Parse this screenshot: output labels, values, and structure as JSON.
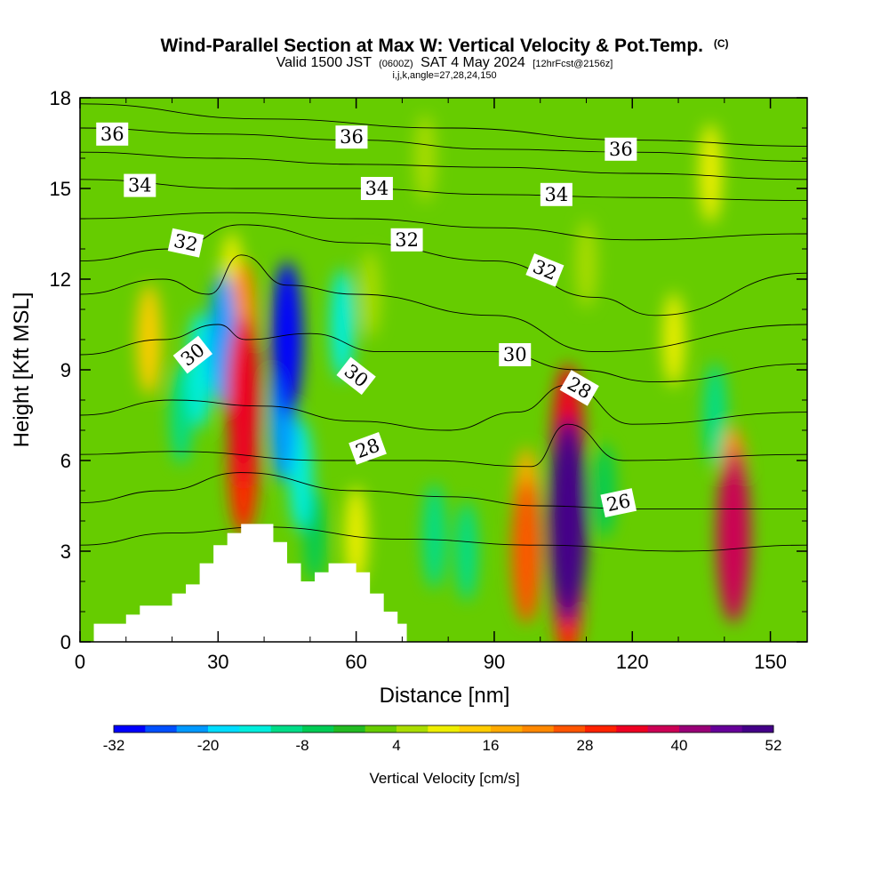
{
  "header": {
    "title": "Wind-Parallel Section at Max W: Vertical Velocity & Pot.Temp.",
    "title_suffix": "(C)",
    "valid_prefix": "Valid 1500 JST",
    "valid_utc": "(0600Z)",
    "valid_date": "SAT 4 May 2024",
    "forecast": "[12hrFcst@2156z]",
    "indices": "i,j,k,angle=27,28,24,150"
  },
  "chart_data": {
    "type": "heatmap",
    "xlabel": "Distance [nm]",
    "ylabel": "Height [Kft MSL]",
    "xlim": [
      0,
      158
    ],
    "ylim": [
      0,
      18
    ],
    "x_ticks": [
      "0",
      "30",
      "60",
      "90",
      "120",
      "150"
    ],
    "y_ticks": [
      "0",
      "3",
      "6",
      "9",
      "12",
      "15",
      "18"
    ],
    "colorbar": {
      "label": "Vertical Velocity [cm/s]",
      "tick_labels": [
        "-32",
        "-20",
        "-8",
        "4",
        "16",
        "28",
        "40",
        "52"
      ],
      "min": -32,
      "max": 52,
      "step": 4,
      "colors": [
        "#0000ff",
        "#0050ff",
        "#0099ff",
        "#00ddff",
        "#00eedd",
        "#00dd88",
        "#00cc55",
        "#22bb22",
        "#66cc00",
        "#aadd00",
        "#eeee00",
        "#ffcc00",
        "#ffaa00",
        "#ff8800",
        "#ff5500",
        "#ff2200",
        "#ee0022",
        "#cc0055",
        "#990077",
        "#660099",
        "#440088"
      ]
    },
    "vertical_velocity_cells": [
      {
        "x": 35.5,
        "y": 8.0,
        "w": 34
      },
      {
        "x": 35.5,
        "y": 6.0,
        "w": 28
      },
      {
        "x": 35.5,
        "y": 10.5,
        "w": 20
      },
      {
        "x": 33.0,
        "y": 12.0,
        "w": 8
      },
      {
        "x": 31.0,
        "y": 10.0,
        "w": -22
      },
      {
        "x": 26.0,
        "y": 9.0,
        "w": -16
      },
      {
        "x": 22.0,
        "y": 7.5,
        "w": -10
      },
      {
        "x": 45.0,
        "y": 10.0,
        "w": -30
      },
      {
        "x": 44.0,
        "y": 7.5,
        "w": -22
      },
      {
        "x": 48.0,
        "y": 5.5,
        "w": -14
      },
      {
        "x": 51.0,
        "y": 3.5,
        "w": -8
      },
      {
        "x": 57.0,
        "y": 10.5,
        "w": -14
      },
      {
        "x": 60.0,
        "y": 3.5,
        "w": 10
      },
      {
        "x": 15.0,
        "y": 10.0,
        "w": 14
      },
      {
        "x": 63.0,
        "y": 11.5,
        "w": 6
      },
      {
        "x": 77.0,
        "y": 3.5,
        "w": -12
      },
      {
        "x": 84.0,
        "y": 3.0,
        "w": -10
      },
      {
        "x": 97.0,
        "y": 3.0,
        "w": 26
      },
      {
        "x": 97.0,
        "y": 4.5,
        "w": 16
      },
      {
        "x": 106.0,
        "y": 4.0,
        "w": 48
      },
      {
        "x": 106.0,
        "y": 6.5,
        "w": 32
      },
      {
        "x": 106.0,
        "y": 2.0,
        "w": 30
      },
      {
        "x": 114.0,
        "y": 5.0,
        "w": -8
      },
      {
        "x": 138.0,
        "y": 7.5,
        "w": -12
      },
      {
        "x": 142.0,
        "y": 3.5,
        "w": 36
      },
      {
        "x": 142.0,
        "y": 5.0,
        "w": 20
      },
      {
        "x": 129.0,
        "y": 10.0,
        "w": 8
      },
      {
        "x": 137.0,
        "y": 15.5,
        "w": 10
      },
      {
        "x": 110.0,
        "y": 12.5,
        "w": 6
      },
      {
        "x": 75.0,
        "y": 16.0,
        "w": 6
      }
    ],
    "terrain": [
      [
        3,
        0.6
      ],
      [
        10,
        0.6
      ],
      [
        10,
        0.9
      ],
      [
        13,
        0.9
      ],
      [
        13,
        1.2
      ],
      [
        20,
        1.2
      ],
      [
        20,
        1.6
      ],
      [
        23,
        1.6
      ],
      [
        23,
        1.9
      ],
      [
        26,
        1.9
      ],
      [
        26,
        2.6
      ],
      [
        29,
        2.6
      ],
      [
        29,
        3.2
      ],
      [
        32,
        3.2
      ],
      [
        32,
        3.6
      ],
      [
        35,
        3.6
      ],
      [
        35,
        3.9
      ],
      [
        42,
        3.9
      ],
      [
        42,
        3.3
      ],
      [
        45,
        3.3
      ],
      [
        45,
        2.6
      ],
      [
        48,
        2.6
      ],
      [
        48,
        2.0
      ],
      [
        51,
        2.0
      ],
      [
        51,
        2.3
      ],
      [
        54,
        2.3
      ],
      [
        54,
        2.6
      ],
      [
        60,
        2.6
      ],
      [
        60,
        2.3
      ],
      [
        63,
        2.3
      ],
      [
        63,
        1.6
      ],
      [
        66,
        1.6
      ],
      [
        66,
        1.0
      ],
      [
        69,
        1.0
      ],
      [
        69,
        0.6
      ],
      [
        71,
        0.6
      ],
      [
        71,
        0.3
      ]
    ],
    "theta_contour_labels": [
      {
        "text": "36",
        "x": 7.0,
        "y": 16.8,
        "angle": 0
      },
      {
        "text": "36",
        "x": 59.0,
        "y": 16.7,
        "angle": 0
      },
      {
        "text": "36",
        "x": 117.5,
        "y": 16.3,
        "angle": 0
      },
      {
        "text": "34",
        "x": 13.0,
        "y": 15.1,
        "angle": 0
      },
      {
        "text": "34",
        "x": 64.5,
        "y": 15.0,
        "angle": 0
      },
      {
        "text": "34",
        "x": 103.5,
        "y": 14.8,
        "angle": 0
      },
      {
        "text": "32",
        "x": 23.0,
        "y": 13.2,
        "angle": 12
      },
      {
        "text": "32",
        "x": 71.0,
        "y": 13.3,
        "angle": 0
      },
      {
        "text": "32",
        "x": 101.0,
        "y": 12.3,
        "angle": 22
      },
      {
        "text": "30",
        "x": 24.5,
        "y": 9.5,
        "angle": -38
      },
      {
        "text": "30",
        "x": 60.0,
        "y": 8.8,
        "angle": 38
      },
      {
        "text": "30",
        "x": 94.5,
        "y": 9.5,
        "angle": 0
      },
      {
        "text": "28",
        "x": 62.5,
        "y": 6.4,
        "angle": -20
      },
      {
        "text": "28",
        "x": 108.5,
        "y": 8.4,
        "angle": 30
      },
      {
        "text": "26",
        "x": 117.0,
        "y": 4.6,
        "angle": -12
      }
    ],
    "theta_isolines": [
      {
        "level": 36,
        "points": [
          [
            0,
            17.8
          ],
          [
            40,
            17.3
          ],
          [
            80,
            17.0
          ],
          [
            120,
            16.6
          ],
          [
            158,
            16.4
          ]
        ]
      },
      {
        "level": 36,
        "points": [
          [
            0,
            17.0
          ],
          [
            30,
            16.8
          ],
          [
            60,
            16.6
          ],
          [
            90,
            16.3
          ],
          [
            120,
            16.2
          ],
          [
            158,
            15.9
          ]
        ]
      },
      {
        "level": 35,
        "points": [
          [
            0,
            16.2
          ],
          [
            30,
            16.0
          ],
          [
            60,
            15.8
          ],
          [
            90,
            15.7
          ],
          [
            120,
            15.5
          ],
          [
            158,
            15.3
          ]
        ]
      },
      {
        "level": 34,
        "points": [
          [
            0,
            15.3
          ],
          [
            34,
            15.0
          ],
          [
            60,
            15.0
          ],
          [
            90,
            14.8
          ],
          [
            120,
            14.7
          ],
          [
            158,
            14.6
          ]
        ]
      },
      {
        "level": 33,
        "points": [
          [
            0,
            14.0
          ],
          [
            33,
            14.2
          ],
          [
            60,
            14.0
          ],
          [
            90,
            13.7
          ],
          [
            120,
            13.3
          ],
          [
            158,
            13.5
          ]
        ]
      },
      {
        "level": 32,
        "points": [
          [
            0,
            12.6
          ],
          [
            20,
            13.0
          ],
          [
            35,
            13.8
          ],
          [
            60,
            13.2
          ],
          [
            90,
            12.6
          ],
          [
            112,
            11.4
          ],
          [
            125,
            10.8
          ],
          [
            158,
            12.2
          ]
        ]
      },
      {
        "level": 31,
        "points": [
          [
            0,
            11.5
          ],
          [
            18,
            12.0
          ],
          [
            28,
            11.5
          ],
          [
            35,
            12.8
          ],
          [
            45,
            11.8
          ],
          [
            60,
            11.5
          ],
          [
            90,
            10.8
          ],
          [
            112,
            9.6
          ],
          [
            158,
            10.5
          ]
        ]
      },
      {
        "level": 30,
        "points": [
          [
            0,
            9.5
          ],
          [
            18,
            10.0
          ],
          [
            30,
            10.5
          ],
          [
            36,
            10.0
          ],
          [
            50,
            10.2
          ],
          [
            65,
            9.6
          ],
          [
            90,
            9.6
          ],
          [
            108,
            9.0
          ],
          [
            125,
            8.6
          ],
          [
            158,
            9.2
          ]
        ]
      },
      {
        "level": 29,
        "points": [
          [
            0,
            7.5
          ],
          [
            20,
            8.0
          ],
          [
            40,
            7.8
          ],
          [
            60,
            7.3
          ],
          [
            80,
            7.0
          ],
          [
            95,
            7.6
          ],
          [
            106,
            8.5
          ],
          [
            120,
            7.2
          ],
          [
            158,
            7.6
          ]
        ]
      },
      {
        "level": 28,
        "points": [
          [
            0,
            6.2
          ],
          [
            20,
            6.3
          ],
          [
            55,
            6.0
          ],
          [
            75,
            6.0
          ],
          [
            98,
            5.8
          ],
          [
            106,
            7.2
          ],
          [
            118,
            6.0
          ],
          [
            158,
            6.2
          ]
        ]
      },
      {
        "level": 27,
        "points": [
          [
            0,
            4.6
          ],
          [
            18,
            5.0
          ],
          [
            35,
            5.6
          ],
          [
            60,
            5.0
          ],
          [
            80,
            4.8
          ],
          [
            100,
            4.5
          ],
          [
            120,
            4.4
          ],
          [
            158,
            4.4
          ]
        ]
      },
      {
        "level": 26,
        "points": [
          [
            0,
            3.2
          ],
          [
            20,
            3.6
          ],
          [
            40,
            3.8
          ],
          [
            70,
            3.4
          ],
          [
            100,
            3.2
          ],
          [
            130,
            3.0
          ],
          [
            158,
            3.2
          ]
        ]
      }
    ]
  }
}
